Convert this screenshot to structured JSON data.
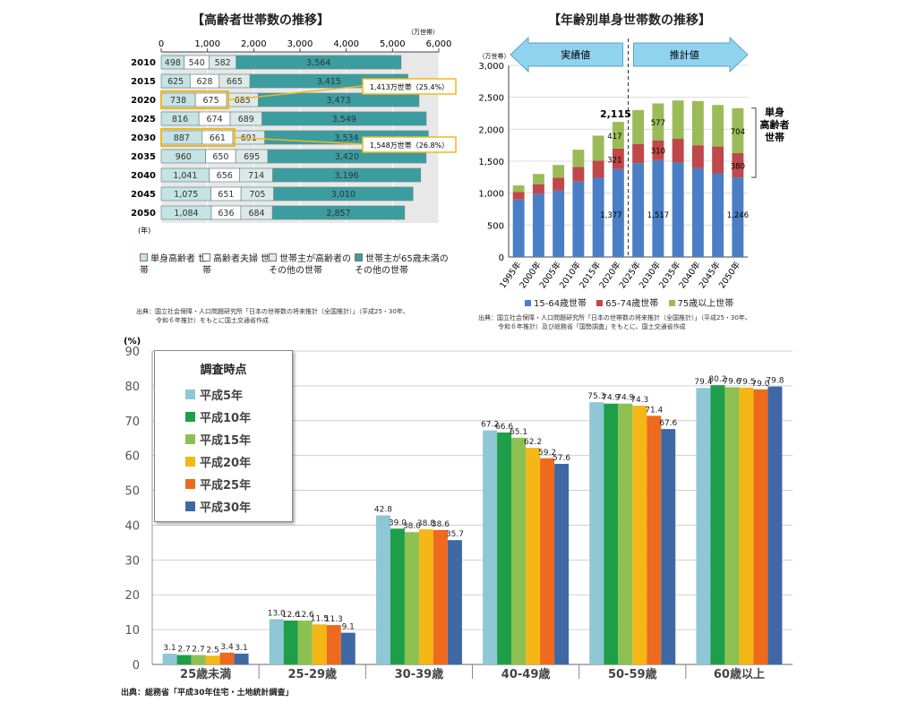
{
  "chart_data": [
    {
      "id": "c1",
      "type": "bar",
      "stacked": true,
      "orientation": "horizontal",
      "title": "【高齢者世帯数の推移】",
      "unit": "（万世帯）",
      "year_unit": "(年)",
      "categories": [
        "2010",
        "2015",
        "2020",
        "2025",
        "2030",
        "2035",
        "2040",
        "2045",
        "2050"
      ],
      "ticks": [
        "0",
        "1,000",
        "2,000",
        "3,000",
        "4,000",
        "5,000",
        "6,000"
      ],
      "xlim": [
        0,
        6000
      ],
      "series": [
        {
          "name": "単身高齢者 世帯",
          "color": "#c5e3e3",
          "values": [
            498,
            625,
            738,
            816,
            887,
            960,
            1041,
            1075,
            1084
          ],
          "labels": [
            "498",
            "625",
            "738",
            "816",
            "887",
            "960",
            "1,041",
            "1,075",
            "1,084"
          ]
        },
        {
          "name": "高齢者夫婦 世帯",
          "color": "#ffffff",
          "values": [
            540,
            628,
            675,
            674,
            661,
            650,
            656,
            651,
            636
          ],
          "labels": [
            "540",
            "628",
            "675",
            "674",
            "661",
            "650",
            "656",
            "651",
            "636"
          ]
        },
        {
          "name": "世帯主が高齢者の その他の世帯",
          "color": "#dde9e9",
          "values": [
            582,
            665,
            685,
            689,
            691,
            695,
            714,
            705,
            684
          ],
          "labels": [
            "582",
            "665",
            "685",
            "689",
            "691",
            "695",
            "714",
            "705",
            "684"
          ]
        },
        {
          "name": "世帯主が65歳未満の その他の世帯",
          "color": "#3b9da0",
          "values": [
            3564,
            3415,
            3473,
            3549,
            3534,
            3420,
            3196,
            3010,
            2857
          ],
          "labels": [
            "3,564",
            "3,415",
            "3,473",
            "3,549",
            "3,534",
            "3,420",
            "3,196",
            "3,010",
            "2,857"
          ]
        }
      ],
      "annotations": [
        "1,413万世帯（25.4%）",
        "1,548万世帯（26.8%）"
      ],
      "source": [
        "出典：国立社会保障・人口問題研究所「日本の世帯数の将来推計（全国推計）」（平成25・30年、",
        "令和６年推計）をもとに国土交通省作成"
      ]
    },
    {
      "id": "c2",
      "type": "bar",
      "stacked": true,
      "title": "【年齢別単身世帯数の推移】",
      "unit": "（万世帯）",
      "categories": [
        "1995年",
        "2000年",
        "2005年",
        "2010年",
        "2015年",
        "2020年",
        "2025年",
        "2030年",
        "2035年",
        "2040年",
        "2045年",
        "2050年"
      ],
      "ylim": [
        0,
        3000
      ],
      "yticks": [
        "0",
        "500",
        "1,000",
        "1,500",
        "2,000",
        "2,500",
        "3,000"
      ],
      "series": [
        {
          "name": "15-64歳世帯",
          "color": "#4a7ec5",
          "values": [
            900,
            990,
            1040,
            1180,
            1240,
            1377,
            1470,
            1517,
            1480,
            1390,
            1310,
            1246
          ]
        },
        {
          "name": "65-74歳世帯",
          "color": "#c0474a",
          "values": [
            120,
            150,
            200,
            230,
            270,
            321,
            300,
            310,
            370,
            360,
            420,
            380
          ]
        },
        {
          "name": "75歳以上世帯",
          "color": "#9bbb59",
          "values": [
            100,
            160,
            200,
            270,
            390,
            417,
            530,
            577,
            600,
            690,
            650,
            704
          ]
        }
      ],
      "arrow_left": "実績値",
      "arrow_right": "推計値",
      "total_label": "2,115",
      "data_labels": [
        "321",
        "417",
        "1,377",
        "577",
        "310",
        "1,517",
        "704",
        "380",
        "1,246"
      ],
      "side_label": [
        "単身",
        "高齢者",
        "世帯"
      ],
      "source": [
        "出典：国立社会保障・人口問題研究所「日本の世帯数の将来推計（全国推計）」（平成25・30年、",
        "令和６年推計）及び総務省「国勢調査」をもとに、国土交通省作成"
      ]
    },
    {
      "id": "c3",
      "type": "bar",
      "ylabel": "(%)",
      "ylim": [
        0,
        90
      ],
      "yticks": [
        "0",
        "10",
        "20",
        "30",
        "40",
        "50",
        "60",
        "70",
        "80",
        "90"
      ],
      "categories": [
        "25歳未満",
        "25-29歳",
        "30-39歳",
        "40-49歳",
        "50-59歳",
        "60歳以上"
      ],
      "legend_title": "調査時点",
      "series": [
        {
          "name": "平成5年",
          "color": "#8ec7d6",
          "values": [
            3.1,
            13.0,
            42.8,
            67.2,
            75.3,
            79.4
          ],
          "labels": [
            "3.1",
            "13.0",
            "42.8",
            "67.2",
            "75.3",
            "79.4"
          ]
        },
        {
          "name": "平成10年",
          "color": "#1e9e48",
          "values": [
            2.7,
            12.6,
            39.0,
            66.6,
            74.9,
            80.2
          ],
          "labels": [
            "2.7",
            "12.6",
            "39.0",
            "66.6",
            "74.9",
            "80.2"
          ]
        },
        {
          "name": "平成15年",
          "color": "#8cc152",
          "values": [
            2.7,
            12.6,
            38.0,
            65.1,
            74.9,
            79.6
          ],
          "labels": [
            "2.7",
            "12.6",
            "38.0",
            "65.1",
            "74.9",
            "79.6"
          ]
        },
        {
          "name": "平成20年",
          "color": "#f5b716",
          "values": [
            2.5,
            11.5,
            38.8,
            62.2,
            74.3,
            79.5
          ],
          "labels": [
            "2.5",
            "11.5",
            "38.8",
            "62.2",
            "74.3",
            "79.5"
          ]
        },
        {
          "name": "平成25年",
          "color": "#ee6a1d",
          "values": [
            3.4,
            11.3,
            38.6,
            59.2,
            71.4,
            79.0
          ],
          "labels": [
            "3.4",
            "11.3",
            "38.6",
            "59.2",
            "71.4",
            "79.0"
          ]
        },
        {
          "name": "平成30年",
          "color": "#3f68a4",
          "values": [
            3.1,
            9.1,
            35.7,
            57.6,
            67.6,
            79.8
          ],
          "labels": [
            "3.1",
            "9.1",
            "35.7",
            "57.6",
            "67.6",
            "79.8"
          ]
        }
      ],
      "source": "出典：総務省「平成30年住宅・土地統計調査」"
    }
  ]
}
